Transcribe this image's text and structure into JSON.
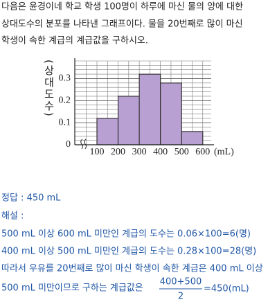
{
  "problem": {
    "lines": [
      "다음은 윤경이네 학교 학생 100명이 하루에 마신 물의 양에 대한",
      "상대도수의 분포를 나타낸 그래프이다. 물을 20번째로 많이 마신",
      "학생이 속한 계급의 계급값을 구하시오."
    ]
  },
  "chart_data": {
    "type": "histogram",
    "y_label": "(상대도수)",
    "x_unit": "(mL)",
    "bins": [
      100,
      200,
      300,
      400,
      500,
      600
    ],
    "values": [
      0.12,
      0.22,
      0.32,
      0.28,
      0.06
    ],
    "color": "#b9a0d2",
    "xlim": [
      100,
      640
    ],
    "ylim": [
      0,
      0.38
    ],
    "yticks": [
      0,
      0.1,
      0.2,
      0.3
    ],
    "grid": true
  },
  "solution": {
    "answer": "정답 :  450 mL",
    "heading": "해설 :",
    "lines": [
      "500 mL  이상  600 mL  미만인 계급의 도수는 0.06×100=6(명)",
      "400 mL  이상  500 mL  미만인 계급의 도수는 0.28×100=28(명)",
      "따라서 우유를 20번째로 많이 마신 학생이 속한 계급은 400 mL  이상",
      "500 mL  미만이므로 구하는 계급값은"
    ],
    "fraction": {
      "numerator": "400+500",
      "denominator": "2",
      "result": "=450(mL)"
    }
  }
}
